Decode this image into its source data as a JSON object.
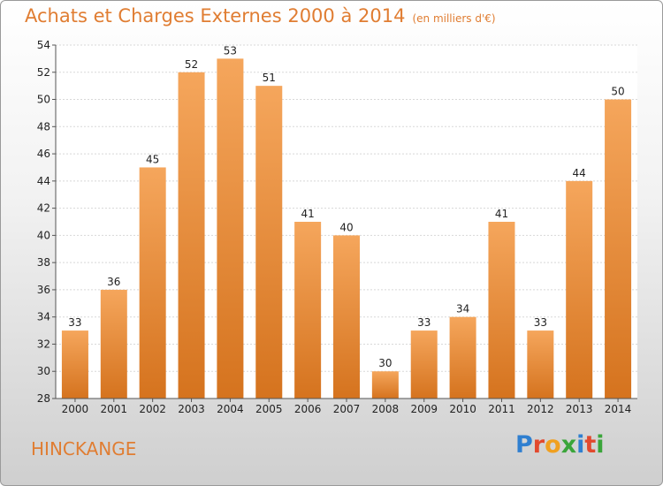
{
  "header": {
    "title": "Achats et Charges Externes 2000 à 2014",
    "subtitle": "(en milliers d'€)"
  },
  "footer": {
    "commune": "HINCKANGE",
    "logo": "Proxiti"
  },
  "colors": {
    "accent": "#e07d32",
    "bar_top": "#f5a65c",
    "bar_bottom": "#d5731e"
  },
  "chart_data": {
    "type": "bar",
    "title": "Achats et Charges Externes 2000 à 2014",
    "subtitle": "(en milliers d'€)",
    "xlabel": "",
    "ylabel": "",
    "categories": [
      "2000",
      "2001",
      "2002",
      "2003",
      "2004",
      "2005",
      "2006",
      "2007",
      "2008",
      "2009",
      "2010",
      "2011",
      "2012",
      "2013",
      "2014"
    ],
    "values": [
      33,
      36,
      45,
      52,
      53,
      51,
      41,
      40,
      30,
      33,
      34,
      41,
      33,
      44,
      50
    ],
    "ylim": [
      28,
      54
    ],
    "yticks": [
      28,
      30,
      32,
      34,
      36,
      38,
      40,
      42,
      44,
      46,
      48,
      50,
      52,
      54
    ],
    "grid": true,
    "legend": "none"
  }
}
